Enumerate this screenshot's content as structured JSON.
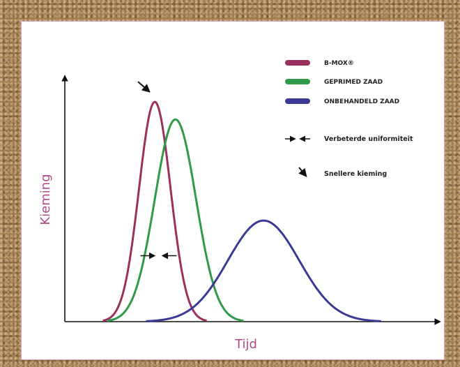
{
  "chart_data": {
    "type": "line",
    "title": "",
    "xlabel": "Tijd",
    "ylabel": "Kieming",
    "xlim": [
      0,
      100
    ],
    "ylim": [
      0,
      100
    ],
    "grid": false,
    "legend_position": "top-right",
    "series": [
      {
        "name": "B-MOX®",
        "color": "#9b2f5e",
        "peak_x": 24,
        "peak_y": 100,
        "spread": 4.2
      },
      {
        "name": "GEPRIMED ZAAD",
        "color": "#2f9a48",
        "peak_x": 29.5,
        "peak_y": 92,
        "spread": 5.5
      },
      {
        "name": "ONBEHANDELD ZAAD",
        "color": "#3b3996",
        "peak_x": 53,
        "peak_y": 46,
        "spread": 9.5
      }
    ],
    "annotations": [
      {
        "name": "Verbeterde uniformiteit",
        "symbol": "inward-arrows",
        "at_x": 25,
        "at_y": 30
      },
      {
        "name": "Snellere kieming",
        "symbol": "diagonal-arrow",
        "at_x": 22.5,
        "at_y": 106
      }
    ]
  }
}
